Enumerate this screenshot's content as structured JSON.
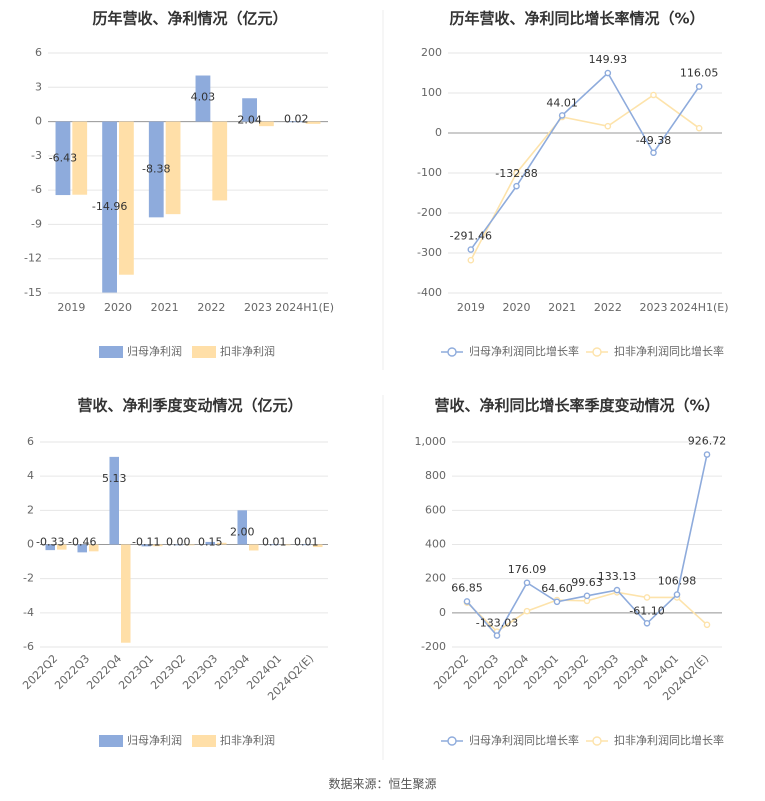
{
  "source": "数据来源：恒生聚源",
  "colors": {
    "blue": "#8eabdc",
    "orange": "#ffdfa8",
    "blue_line": "#8eabdc",
    "orange_line": "#fde3ab",
    "grid": "#e6e6e6",
    "axis_text": "#666666",
    "title": "#333333"
  },
  "chart_data": [
    {
      "type": "bar",
      "title": "历年营收、净利情况（亿元）",
      "categories": [
        "2019",
        "2020",
        "2021",
        "2022",
        "2023",
        "2024H1(E)"
      ],
      "ylim": [
        -15,
        6
      ],
      "yticks": [
        6,
        3,
        0,
        -3,
        -6,
        -9,
        -12,
        -15
      ],
      "series": [
        {
          "name": "归母净利润",
          "color": "#8eabdc",
          "values": [
            -6.43,
            -14.96,
            -8.38,
            4.03,
            2.04,
            0.02
          ],
          "labels": [
            "-6.43",
            "-14.96",
            "-8.38",
            "4.03",
            "2.04",
            "0.02"
          ]
        },
        {
          "name": "扣非净利润",
          "color": "#ffdfa8",
          "values": [
            -6.4,
            -13.4,
            -8.1,
            -6.9,
            -0.4,
            -0.2
          ]
        }
      ],
      "legend": "bottom"
    },
    {
      "type": "line",
      "title": "历年营收、净利同比增长率情况（%）",
      "categories": [
        "2019",
        "2020",
        "2021",
        "2022",
        "2023",
        "2024H1(E)"
      ],
      "ylim": [
        -400,
        200
      ],
      "yticks": [
        200,
        100,
        0,
        -100,
        -200,
        -300,
        -400
      ],
      "series": [
        {
          "name": "归母净利润同比增长率",
          "color": "#8eabdc",
          "values": [
            -291.46,
            -132.88,
            44.01,
            149.93,
            -49.38,
            116.05
          ],
          "labels": [
            "-291.46",
            "-132.88",
            "44.01",
            "149.93",
            "-49.38",
            "116.05"
          ]
        },
        {
          "name": "扣非净利润同比增长率",
          "color": "#fde3ab",
          "values": [
            -318,
            -100,
            40,
            17,
            95,
            12
          ]
        }
      ],
      "legend": "bottom"
    },
    {
      "type": "bar",
      "title": "营收、净利季度变动情况（亿元）",
      "categories": [
        "2022Q2",
        "2022Q3",
        "2022Q4",
        "2023Q1",
        "2023Q2",
        "2023Q3",
        "2023Q4",
        "2024Q1",
        "2024Q2(E)"
      ],
      "ylim": [
        -6,
        6
      ],
      "yticks": [
        6,
        4,
        2,
        0,
        -2,
        -4,
        -6
      ],
      "series": [
        {
          "name": "归母净利润",
          "color": "#8eabdc",
          "values": [
            -0.33,
            -0.46,
            5.13,
            -0.11,
            0.0,
            0.15,
            2.0,
            0.01,
            0.01
          ],
          "labels": [
            "-0.33",
            "-0.46",
            "5.13",
            "-0.11",
            "0.00",
            "0.15",
            "2.00",
            "0.01",
            "0.01"
          ]
        },
        {
          "name": "扣非净利润",
          "color": "#ffdfa8",
          "values": [
            -0.3,
            -0.4,
            -5.75,
            -0.1,
            0.0,
            0.1,
            -0.35,
            0.0,
            -0.15
          ]
        }
      ],
      "legend": "bottom"
    },
    {
      "type": "line",
      "title": "营收、净利同比增长率季度变动情况（%）",
      "categories": [
        "2022Q2",
        "2022Q3",
        "2022Q4",
        "2023Q1",
        "2023Q2",
        "2023Q3",
        "2023Q4",
        "2024Q1",
        "2024Q2(E)"
      ],
      "ylim": [
        -200,
        1000
      ],
      "yticks": [
        1000,
        800,
        600,
        400,
        200,
        0,
        -200
      ],
      "ytick_labels": [
        "1,000",
        "800",
        "600",
        "400",
        "200",
        "0",
        "-200"
      ],
      "series": [
        {
          "name": "归母净利润同比增长率",
          "color": "#8eabdc",
          "values": [
            66.85,
            -133.03,
            176.09,
            64.6,
            99.63,
            133.13,
            -61.1,
            106.98,
            926.72
          ],
          "labels": [
            "66.85",
            "-133.03",
            "176.09",
            "64.60",
            "99.63",
            "133.13",
            "-61.10",
            "106.98",
            "926.72"
          ]
        },
        {
          "name": "扣非净利润同比增长率",
          "color": "#fde3ab",
          "values": [
            60,
            -110,
            10,
            75,
            70,
            120,
            90,
            90,
            -70
          ]
        }
      ],
      "legend": "bottom"
    }
  ]
}
